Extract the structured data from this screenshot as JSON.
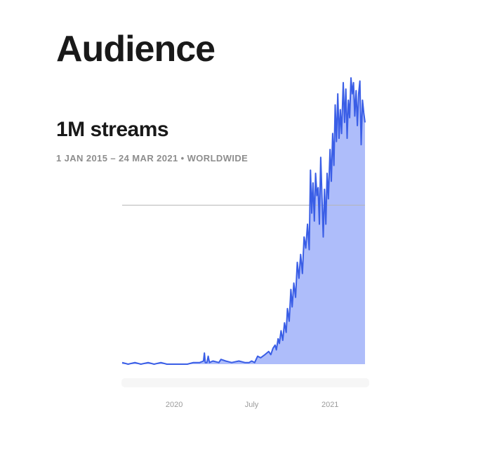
{
  "header": {
    "title": "Audience",
    "metric": "1M streams",
    "date_range": "1 JAN 2015 – 24 MAR 2021",
    "separator": "•",
    "region": "WORLDWIDE"
  },
  "colors": {
    "line": "#3a5ee6",
    "fill": "#aebdfa",
    "reference_line": "#b5b5b5",
    "tick_label": "#9b9b9b"
  },
  "chart_data": {
    "type": "area",
    "title": "1M streams",
    "x_axis": {
      "type": "date",
      "range": [
        "2019-09-01",
        "2021-03-24"
      ],
      "tick_labels": [
        {
          "date": "2020-01-01",
          "label": "2020"
        },
        {
          "date": "2020-07-01",
          "label": "July"
        },
        {
          "date": "2021-01-01",
          "label": "2021"
        }
      ]
    },
    "y_axis": {
      "visible_ticks": false,
      "range": [
        0,
        1.8
      ],
      "unit": "relative daily streams (reference line = 1.0)",
      "reference_line": 1.0
    },
    "grid": false,
    "series": [
      {
        "x": [
          "2019-09-01",
          "2019-09-15",
          "2019-10-01",
          "2019-10-15",
          "2019-11-01",
          "2019-11-15",
          "2019-12-01",
          "2019-12-15",
          "2020-01-01",
          "2020-01-15",
          "2020-02-01",
          "2020-02-15",
          "2020-03-01",
          "2020-03-10",
          "2020-03-12",
          "2020-03-14",
          "2020-03-18",
          "2020-03-21",
          "2020-03-24",
          "2020-04-01",
          "2020-04-15",
          "2020-04-20",
          "2020-05-01",
          "2020-05-15",
          "2020-06-01",
          "2020-06-15",
          "2020-06-25",
          "2020-07-01",
          "2020-07-08",
          "2020-07-15",
          "2020-07-22",
          "2020-08-01",
          "2020-08-10",
          "2020-08-15",
          "2020-08-20",
          "2020-08-25",
          "2020-08-28",
          "2020-09-01",
          "2020-09-04",
          "2020-09-08",
          "2020-09-12",
          "2020-09-16",
          "2020-09-20",
          "2020-09-23",
          "2020-09-27",
          "2020-10-01",
          "2020-10-04",
          "2020-10-08",
          "2020-10-12",
          "2020-10-16",
          "2020-10-20",
          "2020-10-24",
          "2020-10-28",
          "2020-11-01",
          "2020-11-05",
          "2020-11-09",
          "2020-11-13",
          "2020-11-16",
          "2020-11-19",
          "2020-11-22",
          "2020-11-25",
          "2020-11-28",
          "2020-12-01",
          "2020-12-04",
          "2020-12-07",
          "2020-12-10",
          "2020-12-13",
          "2020-12-16",
          "2020-12-19",
          "2020-12-22",
          "2020-12-25",
          "2020-12-28",
          "2021-01-01",
          "2021-01-04",
          "2021-01-07",
          "2021-01-10",
          "2021-01-13",
          "2021-01-16",
          "2021-01-19",
          "2021-01-22",
          "2021-01-25",
          "2021-01-28",
          "2021-02-01",
          "2021-02-04",
          "2021-02-07",
          "2021-02-10",
          "2021-02-13",
          "2021-02-16",
          "2021-02-19",
          "2021-02-22",
          "2021-02-25",
          "2021-02-28",
          "2021-03-03",
          "2021-03-06",
          "2021-03-09",
          "2021-03-12",
          "2021-03-15",
          "2021-03-18",
          "2021-03-21",
          "2021-03-24"
        ],
        "values": [
          0.01,
          0.0,
          0.01,
          0.0,
          0.01,
          0.0,
          0.01,
          0.0,
          0.0,
          0.0,
          0.0,
          0.01,
          0.01,
          0.02,
          0.07,
          0.01,
          0.01,
          0.05,
          0.01,
          0.02,
          0.01,
          0.03,
          0.02,
          0.01,
          0.02,
          0.01,
          0.01,
          0.02,
          0.01,
          0.05,
          0.04,
          0.06,
          0.08,
          0.06,
          0.1,
          0.12,
          0.09,
          0.16,
          0.13,
          0.21,
          0.15,
          0.26,
          0.2,
          0.35,
          0.27,
          0.47,
          0.36,
          0.51,
          0.42,
          0.64,
          0.54,
          0.69,
          0.57,
          0.8,
          0.73,
          0.88,
          0.72,
          1.22,
          0.95,
          1.14,
          0.9,
          1.2,
          1.06,
          1.11,
          0.88,
          1.3,
          1.05,
          0.8,
          1.1,
          0.88,
          1.2,
          1.04,
          1.35,
          1.15,
          1.45,
          1.25,
          1.63,
          1.4,
          1.7,
          1.42,
          1.6,
          1.45,
          1.77,
          1.52,
          1.73,
          1.42,
          1.66,
          1.55,
          1.8,
          1.7,
          1.77,
          1.56,
          1.72,
          1.5,
          1.7,
          1.78,
          1.38,
          1.66,
          1.58,
          1.52
        ]
      }
    ]
  }
}
